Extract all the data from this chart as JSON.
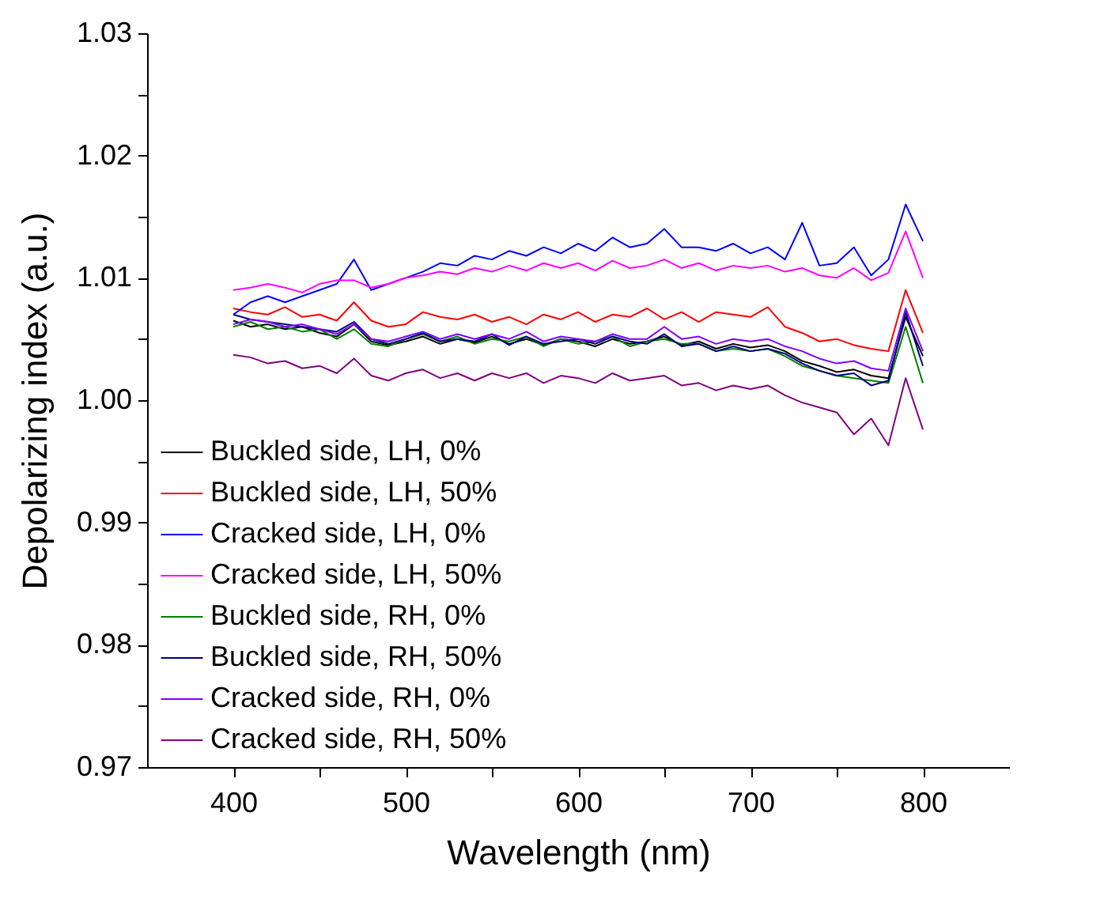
{
  "chart_data": {
    "type": "line",
    "xlabel": "Wavelength (nm)",
    "ylabel": "Depolarizing index (a.u.)",
    "x": [
      400,
      410,
      420,
      430,
      440,
      450,
      460,
      470,
      480,
      490,
      500,
      510,
      520,
      530,
      540,
      550,
      560,
      570,
      580,
      590,
      600,
      610,
      620,
      630,
      640,
      650,
      660,
      670,
      680,
      690,
      700,
      710,
      720,
      730,
      740,
      750,
      760,
      770,
      780,
      790,
      800
    ],
    "series": [
      {
        "name": "Buckled side, LH, 0%",
        "color": "#000000",
        "values": [
          1.0065,
          1.006,
          1.0062,
          1.0058,
          1.006,
          1.0055,
          1.0052,
          1.0062,
          1.0048,
          1.0045,
          1.0048,
          1.0052,
          1.0046,
          1.005,
          1.0047,
          1.0052,
          1.0046,
          1.005,
          1.0045,
          1.005,
          1.0048,
          1.0044,
          1.005,
          1.0046,
          1.0048,
          1.0052,
          1.0045,
          1.0048,
          1.0042,
          1.0046,
          1.0043,
          1.0045,
          1.004,
          1.0032,
          1.0028,
          1.0023,
          1.0025,
          1.002,
          1.0018,
          1.0068,
          1.0036
        ]
      },
      {
        "name": "Buckled side, LH, 50%",
        "color": "#ff0000",
        "values": [
          1.0075,
          1.0072,
          1.007,
          1.0076,
          1.0068,
          1.007,
          1.0065,
          1.008,
          1.0065,
          1.006,
          1.0062,
          1.0072,
          1.0068,
          1.0066,
          1.007,
          1.0064,
          1.0068,
          1.0062,
          1.007,
          1.0066,
          1.0072,
          1.0064,
          1.007,
          1.0068,
          1.0075,
          1.0066,
          1.0072,
          1.0064,
          1.0072,
          1.007,
          1.0068,
          1.0076,
          1.006,
          1.0055,
          1.0048,
          1.005,
          1.0045,
          1.0042,
          1.004,
          1.009,
          1.0055
        ]
      },
      {
        "name": "Cracked side, LH, 0%",
        "color": "#0000ff",
        "values": [
          1.007,
          1.008,
          1.0085,
          1.008,
          1.0085,
          1.009,
          1.0095,
          1.0115,
          1.009,
          1.0095,
          1.01,
          1.0105,
          1.0112,
          1.011,
          1.0118,
          1.0115,
          1.0122,
          1.0118,
          1.0125,
          1.012,
          1.0128,
          1.0122,
          1.0133,
          1.0125,
          1.0128,
          1.014,
          1.0125,
          1.0125,
          1.0122,
          1.0128,
          1.012,
          1.0125,
          1.0115,
          1.0145,
          1.011,
          1.0112,
          1.0125,
          1.0102,
          1.0115,
          1.016,
          1.013
        ]
      },
      {
        "name": "Cracked side, LH, 50%",
        "color": "#ff00ff",
        "values": [
          1.009,
          1.0092,
          1.0095,
          1.0092,
          1.0088,
          1.0095,
          1.0098,
          1.0098,
          1.0092,
          1.0095,
          1.01,
          1.0102,
          1.0105,
          1.0103,
          1.0108,
          1.0105,
          1.011,
          1.0106,
          1.0112,
          1.0108,
          1.0112,
          1.0106,
          1.0114,
          1.0108,
          1.011,
          1.0115,
          1.0108,
          1.0112,
          1.0106,
          1.011,
          1.0108,
          1.011,
          1.0105,
          1.0108,
          1.0102,
          1.01,
          1.0108,
          1.0098,
          1.0104,
          1.0138,
          1.01
        ]
      },
      {
        "name": "Buckled side, RH, 0%",
        "color": "#008000",
        "values": [
          1.006,
          1.0064,
          1.0058,
          1.006,
          1.0056,
          1.0058,
          1.005,
          1.0058,
          1.0046,
          1.0044,
          1.005,
          1.0054,
          1.0048,
          1.0052,
          1.0046,
          1.005,
          1.0048,
          1.0052,
          1.0044,
          1.005,
          1.0046,
          1.0048,
          1.0052,
          1.0044,
          1.0048,
          1.005,
          1.0046,
          1.0046,
          1.004,
          1.0042,
          1.004,
          1.0042,
          1.0036,
          1.0028,
          1.0024,
          1.002,
          1.0018,
          1.0016,
          1.0014,
          1.006,
          1.0014
        ]
      },
      {
        "name": "Buckled side, RH, 50%",
        "color": "#000080",
        "values": [
          1.007,
          1.0066,
          1.0064,
          1.0062,
          1.006,
          1.0058,
          1.0056,
          1.0064,
          1.005,
          1.0046,
          1.005,
          1.0055,
          1.0048,
          1.005,
          1.0048,
          1.0054,
          1.0045,
          1.0052,
          1.0046,
          1.0048,
          1.005,
          1.0046,
          1.0052,
          1.0048,
          1.0046,
          1.0054,
          1.0044,
          1.0046,
          1.004,
          1.0044,
          1.004,
          1.0042,
          1.0038,
          1.003,
          1.0024,
          1.002,
          1.0022,
          1.0012,
          1.0016,
          1.0072,
          1.0028
        ]
      },
      {
        "name": "Cracked side, RH, 0%",
        "color": "#8000ff",
        "values": [
          1.0062,
          1.0066,
          1.0064,
          1.006,
          1.0062,
          1.0058,
          1.0054,
          1.0062,
          1.005,
          1.0048,
          1.0052,
          1.0056,
          1.005,
          1.0054,
          1.005,
          1.0054,
          1.005,
          1.0056,
          1.0048,
          1.0052,
          1.005,
          1.0048,
          1.0054,
          1.005,
          1.005,
          1.006,
          1.005,
          1.0052,
          1.0046,
          1.005,
          1.0048,
          1.005,
          1.0044,
          1.004,
          1.0034,
          1.003,
          1.0032,
          1.0026,
          1.0024,
          1.0075,
          1.004
        ]
      },
      {
        "name": "Cracked side, RH, 50%",
        "color": "#800080",
        "values": [
          1.0037,
          1.0035,
          1.003,
          1.0032,
          1.0026,
          1.0028,
          1.0022,
          1.0034,
          1.002,
          1.0016,
          1.0022,
          1.0025,
          1.0018,
          1.0022,
          1.0016,
          1.0022,
          1.0018,
          1.0022,
          1.0014,
          1.002,
          1.0018,
          1.0014,
          1.0022,
          1.0016,
          1.0018,
          1.002,
          1.0012,
          1.0014,
          1.0008,
          1.0012,
          1.0009,
          1.0012,
          1.0004,
          0.9998,
          0.9994,
          0.999,
          0.9972,
          0.9985,
          0.9963,
          1.0018,
          0.9976
        ]
      }
    ],
    "xlim": [
      350,
      850
    ],
    "ylim": [
      0.97,
      1.03
    ],
    "xticks": [
      400,
      {
        "value": 450,
        "label": null
      },
      500,
      {
        "value": 550,
        "label": null
      },
      600,
      {
        "value": 650,
        "label": null
      },
      700,
      {
        "value": 750,
        "label": null
      },
      800
    ],
    "yticks": [
      0.97,
      {
        "value": 0.975,
        "label": null
      },
      0.98,
      {
        "value": 0.985,
        "label": null
      },
      0.99,
      {
        "value": 0.995,
        "label": null
      },
      {
        "value": 1.0,
        "label": "1.00"
      },
      {
        "value": 1.005,
        "label": null
      },
      1.01,
      {
        "value": 1.015,
        "label": null
      },
      1.02,
      {
        "value": 1.025,
        "label": null
      },
      1.03
    ],
    "grid": false,
    "legend": "bottom left",
    "marker": "none",
    "line_style": "solid"
  }
}
